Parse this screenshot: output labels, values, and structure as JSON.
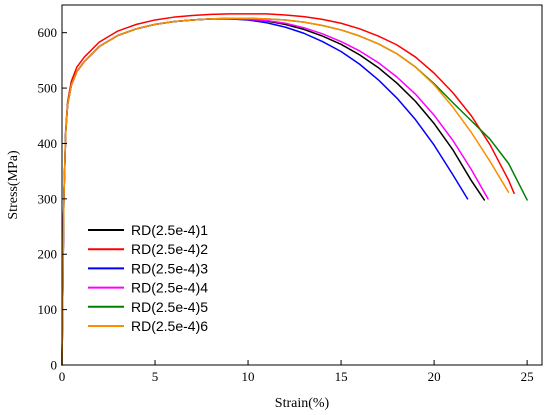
{
  "chart_data": {
    "type": "line",
    "title": "",
    "xlabel": "Strain(%)",
    "ylabel": "Stress(MPa)",
    "xlim": [
      0,
      25.8
    ],
    "ylim": [
      0,
      650
    ],
    "xticks": [
      "0",
      "5",
      "10",
      "15",
      "20",
      "25"
    ],
    "yticks": [
      "0",
      "100",
      "200",
      "300",
      "400",
      "500",
      "600"
    ],
    "grid": false,
    "legend": "lower-left",
    "series": [
      {
        "name": "RD(2.5e-4)1",
        "color": "#000000",
        "x": [
          0,
          0.1,
          0.2,
          0.3,
          0.5,
          0.8,
          1.2,
          2,
          3,
          4,
          5,
          6,
          7,
          8,
          9,
          10,
          11,
          12,
          13,
          14,
          15,
          16,
          17,
          18,
          19,
          20,
          21,
          22,
          22.7
        ],
        "y": [
          0,
          300,
          420,
          470,
          505,
          530,
          548,
          575,
          595,
          607,
          615,
          620,
          623,
          625,
          625,
          624,
          621,
          615,
          606,
          594,
          579,
          560,
          537,
          509,
          476,
          436,
          389,
          333,
          298
        ]
      },
      {
        "name": "RD(2.5e-4)2",
        "color": "#ff0000",
        "x": [
          0,
          0.1,
          0.2,
          0.3,
          0.5,
          0.8,
          1.2,
          2,
          3,
          4,
          5,
          6,
          7,
          8,
          9,
          10,
          11,
          12,
          13,
          14,
          15,
          16,
          17,
          18,
          19,
          20,
          21,
          22,
          23,
          24,
          24.3
        ],
        "y": [
          0,
          305,
          425,
          475,
          512,
          538,
          556,
          583,
          603,
          615,
          623,
          628,
          631,
          633,
          634,
          634,
          634,
          632,
          629,
          624,
          617,
          607,
          594,
          578,
          556,
          527,
          492,
          450,
          398,
          334,
          310
        ]
      },
      {
        "name": "RD(2.5e-4)3",
        "color": "#0000ff",
        "x": [
          0,
          0.1,
          0.2,
          0.3,
          0.5,
          0.8,
          1.2,
          2,
          3,
          4,
          5,
          6,
          7,
          8,
          9,
          10,
          11,
          12,
          13,
          14,
          15,
          16,
          17,
          18,
          19,
          20,
          21,
          21.8
        ],
        "y": [
          0,
          300,
          420,
          470,
          505,
          530,
          548,
          575,
          595,
          607,
          615,
          620,
          623,
          625,
          625,
          623,
          618,
          610,
          599,
          584,
          566,
          543,
          515,
          482,
          443,
          397,
          344,
          300
        ]
      },
      {
        "name": "RD(2.5e-4)4",
        "color": "#ff00ff",
        "x": [
          0,
          0.1,
          0.2,
          0.3,
          0.5,
          0.8,
          1.2,
          2,
          3,
          4,
          5,
          6,
          7,
          8,
          9,
          10,
          11,
          12,
          13,
          14,
          15,
          16,
          17,
          18,
          19,
          20,
          21,
          22,
          22.9
        ],
        "y": [
          0,
          300,
          420,
          470,
          505,
          530,
          548,
          575,
          595,
          607,
          615,
          620,
          623,
          625,
          625,
          624,
          622,
          617,
          609,
          598,
          584,
          567,
          546,
          520,
          489,
          451,
          406,
          353,
          300
        ]
      },
      {
        "name": "RD(2.5e-4)5",
        "color": "#008000",
        "x": [
          0,
          0.1,
          0.2,
          0.3,
          0.5,
          0.8,
          1.2,
          2,
          3,
          4,
          5,
          6,
          7,
          8,
          9,
          10,
          11,
          12,
          13,
          14,
          15,
          16,
          17,
          18,
          19,
          20,
          21,
          22,
          23,
          24,
          25
        ],
        "y": [
          0,
          300,
          420,
          470,
          505,
          530,
          548,
          575,
          595,
          607,
          615,
          620,
          623,
          625,
          626,
          626,
          625,
          623,
          619,
          613,
          605,
          594,
          580,
          562,
          538,
          508,
          474,
          441,
          408,
          364,
          298
        ]
      },
      {
        "name": "RD(2.5e-4)6",
        "color": "#ff8c00",
        "x": [
          0,
          0.1,
          0.2,
          0.3,
          0.5,
          0.8,
          1.2,
          2,
          3,
          4,
          5,
          6,
          7,
          8,
          9,
          10,
          11,
          12,
          13,
          14,
          15,
          16,
          17,
          18,
          19,
          20,
          21,
          22,
          23,
          24
        ],
        "y": [
          0,
          300,
          420,
          470,
          505,
          530,
          548,
          575,
          595,
          607,
          615,
          620,
          623,
          625,
          626,
          626,
          625,
          623,
          619,
          613,
          605,
          594,
          580,
          562,
          538,
          506,
          466,
          420,
          368,
          312
        ]
      }
    ]
  }
}
